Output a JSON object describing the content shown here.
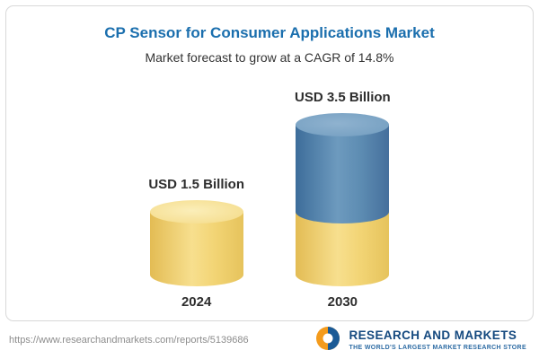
{
  "header": {
    "title": "CP Sensor for Consumer Applications Market",
    "subtitle": "Market forecast to grow at a CAGR of 14.8%"
  },
  "chart_data": {
    "type": "bar",
    "bar_style": "3d-cylinder-stacked",
    "title": "CP Sensor for Consumer Applications Market",
    "subtitle": "Market forecast to grow at a CAGR of 14.8%",
    "cagr": "14.8%",
    "categories": [
      "2024",
      "2030"
    ],
    "values": [
      1.5,
      3.5
    ],
    "unit": "USD Billion",
    "value_labels": [
      "USD 1.5 Billion",
      "USD 3.5 Billion"
    ],
    "series": [
      {
        "name": "base",
        "values": [
          1.5,
          1.5
        ],
        "color": "#F0CE6C"
      },
      {
        "name": "growth",
        "values": [
          0,
          2.0
        ],
        "color": "#4C7CA8"
      }
    ],
    "legend": "none",
    "grid": "off",
    "ylim": [
      0,
      3.5
    ]
  },
  "footer": {
    "url": "https://www.researchandmarkets.com/reports/5139686",
    "logo_text": "RESEARCH AND MARKETS",
    "logo_tagline": "THE WORLD'S LARGEST MARKET RESEARCH STORE"
  }
}
